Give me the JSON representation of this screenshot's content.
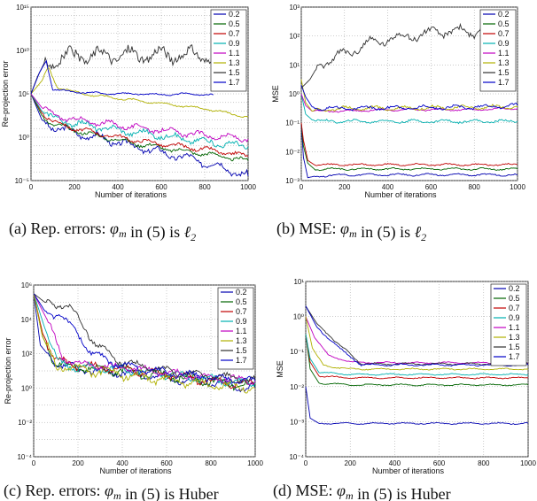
{
  "figure": {
    "captions": [
      {
        "prefix": "(a)",
        "text": "Rep. errors: ",
        "sym": "φ",
        "sub": "m",
        "rest": " in (5) is ",
        "tail": "ℓ",
        "tailsub": "2"
      },
      {
        "prefix": "(b)",
        "text": "MSE: ",
        "sym": "φ",
        "sub": "m",
        "rest": " in (5) is ",
        "tail": "ℓ",
        "tailsub": "2"
      },
      {
        "prefix": "(c)",
        "text": "Rep. errors: ",
        "sym": "φ",
        "sub": "m",
        "rest": " in (5) is Huber",
        "tail": "",
        "tailsub": ""
      },
      {
        "prefix": "(d)",
        "text": "MSE: ",
        "sym": "φ",
        "sub": "m",
        "rest": " in (5) is Huber",
        "tail": "",
        "tailsub": ""
      }
    ]
  },
  "colors": {
    "0.2": "#0000b0",
    "0.5": "#006400",
    "0.7": "#c00000",
    "0.9": "#00b0b0",
    "1.1": "#c000c0",
    "1.3": "#b0b000",
    "1.5": "#303030",
    "1.7": "#0000c8"
  },
  "chart_data": [
    {
      "id": "a",
      "type": "line",
      "title": "",
      "xlabel": "Number of iterations",
      "ylabel": "Re-projection error",
      "xlim": [
        0,
        1000
      ],
      "yscale": "log",
      "ylim_exp": [
        -5,
        15
      ],
      "xticks": [
        "0",
        "200",
        "400",
        "600",
        "800",
        "1000"
      ],
      "yticks": [
        "10⁻⁵",
        "10⁰",
        "10⁵",
        "10¹⁰",
        "10¹⁵"
      ],
      "legend": [
        "0.2",
        "0.5",
        "0.7",
        "0.9",
        "1.1",
        "1.3",
        "1.5",
        "1.7"
      ],
      "legend_position": "top-right",
      "series": [
        {
          "name": "0.2",
          "x": [
            0,
            50,
            100,
            200,
            300,
            400,
            500,
            600,
            700,
            800,
            900,
            1000
          ],
          "logy": [
            5,
            2,
            1.2,
            0.5,
            0,
            -0.6,
            -1.2,
            -1.8,
            -2.3,
            -2.9,
            -3.6,
            -4.5
          ],
          "osc": 0.7
        },
        {
          "name": "0.5",
          "x": [
            0,
            50,
            100,
            200,
            300,
            400,
            500,
            600,
            700,
            800,
            900,
            1000
          ],
          "logy": [
            5,
            2.5,
            1.5,
            0.8,
            0.2,
            -0.3,
            -0.8,
            -1.2,
            -1.6,
            -1.9,
            -2.3,
            -2.7
          ],
          "osc": 0.4
        },
        {
          "name": "0.7",
          "x": [
            0,
            50,
            100,
            200,
            300,
            400,
            500,
            600,
            700,
            800,
            900,
            1000
          ],
          "logy": [
            5,
            2.8,
            1.8,
            1,
            0.5,
            0,
            -0.4,
            -0.8,
            -1.1,
            -1.4,
            -1.8,
            -2.2
          ],
          "osc": 0.4
        },
        {
          "name": "0.9",
          "x": [
            0,
            50,
            100,
            200,
            300,
            400,
            500,
            600,
            700,
            800,
            900,
            1000
          ],
          "logy": [
            5,
            3,
            2.2,
            1.6,
            1.2,
            0.8,
            0.5,
            0.2,
            -0.2,
            -0.5,
            -0.8,
            -1.1
          ],
          "osc": 0.6
        },
        {
          "name": "1.1",
          "x": [
            0,
            50,
            100,
            200,
            300,
            400,
            500,
            600,
            700,
            800,
            900,
            1000
          ],
          "logy": [
            5,
            3.4,
            2.6,
            2,
            1.7,
            1.4,
            1.1,
            0.8,
            0.5,
            0.2,
            0,
            -0.2
          ],
          "osc": 0.5
        },
        {
          "name": "1.3",
          "x": [
            0,
            50,
            80,
            120,
            200,
            300,
            400,
            500,
            600,
            700,
            800,
            900,
            1000
          ],
          "logy": [
            5,
            6.5,
            8,
            5.8,
            5.2,
            4.8,
            4.5,
            4.2,
            3.9,
            3.6,
            3.3,
            2.8,
            2.3
          ],
          "osc": 0.2
        },
        {
          "name": "1.5",
          "x": [
            0,
            30,
            60,
            100,
            200,
            300,
            400,
            500,
            600,
            700,
            800,
            840
          ],
          "logy": [
            5,
            7,
            8.5,
            9,
            9.3,
            9.4,
            9.5,
            9.4,
            9.5,
            9.4,
            9.5,
            9.4
          ],
          "osc": 1.3
        },
        {
          "name": "1.7",
          "x": [
            0,
            40,
            70,
            100,
            200,
            300,
            400,
            500,
            600,
            700,
            800,
            840
          ],
          "logy": [
            5,
            7.5,
            8.8,
            5.5,
            5.2,
            5.1,
            5,
            5,
            4.9,
            5,
            4.9,
            4.9
          ],
          "osc": 0.15
        }
      ]
    },
    {
      "id": "b",
      "type": "line",
      "title": "",
      "xlabel": "Number of iterations",
      "ylabel": "MSE",
      "xlim": [
        0,
        1000
      ],
      "yscale": "log",
      "ylim_exp": [
        -3,
        3
      ],
      "xticks": [
        "0",
        "200",
        "400",
        "600",
        "800",
        "1000"
      ],
      "yticks": [
        "10⁻³",
        "10⁻²",
        "10⁻¹",
        "10⁰",
        "10¹",
        "10²",
        "10³"
      ],
      "legend": [
        "0.2",
        "0.5",
        "0.7",
        "0.9",
        "1.1",
        "1.3",
        "1.5",
        "1.7"
      ],
      "legend_position": "top-right",
      "series": [
        {
          "name": "0.2",
          "x": [
            0,
            10,
            30,
            60,
            200,
            400,
            600,
            800,
            1000
          ],
          "logy": [
            -1,
            -2.2,
            -2.9,
            -2.85,
            -2.8,
            -2.8,
            -2.8,
            -2.8,
            -2.8
          ],
          "osc": 0.05
        },
        {
          "name": "0.5",
          "x": [
            0,
            10,
            30,
            60,
            200,
            400,
            600,
            800,
            1000
          ],
          "logy": [
            -1,
            -1.8,
            -2.4,
            -2.6,
            -2.6,
            -2.6,
            -2.6,
            -2.6,
            -2.6
          ],
          "osc": 0.05
        },
        {
          "name": "0.7",
          "x": [
            0,
            10,
            30,
            60,
            200,
            400,
            600,
            800,
            1000
          ],
          "logy": [
            -1,
            -1.6,
            -2.3,
            -2.45,
            -2.45,
            -2.45,
            -2.45,
            -2.45,
            -2.45
          ],
          "osc": 0.05
        },
        {
          "name": "0.9",
          "x": [
            0,
            20,
            50,
            100,
            200,
            400,
            600,
            800,
            1000
          ],
          "logy": [
            0,
            -0.7,
            -0.9,
            -0.95,
            -0.95,
            -0.95,
            -0.95,
            -0.95,
            -0.95
          ],
          "osc": 0.08
        },
        {
          "name": "1.1",
          "x": [
            0,
            20,
            50,
            100,
            200,
            400,
            600,
            800,
            1000
          ],
          "logy": [
            0,
            -0.4,
            -0.6,
            -0.6,
            -0.6,
            -0.55,
            -0.55,
            -0.55,
            -0.5
          ],
          "osc": 0.05
        },
        {
          "name": "1.3",
          "x": [
            0,
            20,
            50,
            100,
            200,
            400,
            600,
            800,
            1000
          ],
          "logy": [
            0.5,
            -0.3,
            -0.6,
            -0.55,
            -0.5,
            -0.5,
            -0.48,
            -0.47,
            -0.45
          ],
          "osc": 0.1
        },
        {
          "name": "1.5",
          "x": [
            0,
            40,
            80,
            150,
            200,
            300,
            400,
            500,
            600,
            700,
            800,
            850
          ],
          "logy": [
            0.2,
            0.5,
            1,
            1.2,
            1.4,
            1.7,
            1.9,
            2.0,
            2.1,
            2.2,
            2.1,
            2.3
          ],
          "osc": 0.25
        },
        {
          "name": "1.7",
          "x": [
            0,
            20,
            50,
            100,
            200,
            400,
            600,
            800,
            1000
          ],
          "logy": [
            0.3,
            -0.1,
            -0.45,
            -0.5,
            -0.5,
            -0.48,
            -0.47,
            -0.46,
            -0.4
          ],
          "osc": 0.1
        }
      ]
    },
    {
      "id": "c",
      "type": "line",
      "title": "",
      "xlabel": "Number of iterations",
      "ylabel": "Re-projection error",
      "xlim": [
        0,
        1000
      ],
      "yscale": "log",
      "ylim_exp": [
        -4,
        6
      ],
      "xticks": [
        "0",
        "200",
        "400",
        "600",
        "800",
        "1000"
      ],
      "yticks": [
        "10⁻⁴",
        "10⁻²",
        "10⁰",
        "10²",
        "10⁴",
        "10⁶"
      ],
      "legend": [
        "0.2",
        "0.5",
        "0.7",
        "0.9",
        "1.1",
        "1.3",
        "1.5",
        "1.7"
      ],
      "legend_position": "top-right",
      "series": [
        {
          "name": "0.2",
          "x": [
            0,
            30,
            100,
            200,
            400,
            600,
            800,
            1000
          ],
          "logy": [
            5.5,
            2.5,
            1.4,
            1.1,
            0.9,
            0.6,
            0.3,
            0
          ],
          "osc": 0.35
        },
        {
          "name": "0.5",
          "x": [
            0,
            40,
            100,
            200,
            400,
            600,
            800,
            1000
          ],
          "logy": [
            5.5,
            3,
            1.4,
            1.2,
            1,
            0.7,
            0.4,
            0.1
          ],
          "osc": 0.4
        },
        {
          "name": "0.7",
          "x": [
            0,
            40,
            100,
            200,
            400,
            600,
            800,
            1000
          ],
          "logy": [
            5.5,
            3.2,
            1.6,
            1.3,
            1.1,
            0.8,
            0.4,
            0.2
          ],
          "osc": 0.35
        },
        {
          "name": "0.9",
          "x": [
            0,
            50,
            110,
            200,
            400,
            600,
            800,
            1000
          ],
          "logy": [
            5.5,
            3.5,
            1.5,
            1.2,
            1.1,
            0.8,
            0.5,
            0.3
          ],
          "osc": 0.35
        },
        {
          "name": "1.1",
          "x": [
            0,
            60,
            130,
            200,
            400,
            600,
            800,
            1000
          ],
          "logy": [
            5.5,
            4,
            1.8,
            1.4,
            1.2,
            0.9,
            0.6,
            0.4
          ],
          "osc": 0.3
        },
        {
          "name": "1.3",
          "x": [
            0,
            40,
            100,
            200,
            400,
            600,
            800,
            1000
          ],
          "logy": [
            5.5,
            3,
            1.3,
            1.1,
            0.8,
            0.5,
            0.2,
            0
          ],
          "osc": 0.4
        },
        {
          "name": "1.5",
          "x": [
            0,
            50,
            150,
            200,
            280,
            400,
            600,
            800,
            1000
          ],
          "logy": [
            5.5,
            5,
            4.8,
            4.2,
            2.5,
            1.5,
            1.0,
            0.7,
            0.5
          ],
          "osc": 0.3
        },
        {
          "name": "1.7",
          "x": [
            0,
            50,
            120,
            200,
            260,
            400,
            600,
            800,
            1000
          ],
          "logy": [
            5.5,
            4.5,
            4.2,
            3.2,
            2,
            1.3,
            0.9,
            0.6,
            0.4
          ],
          "osc": 0.3
        }
      ]
    },
    {
      "id": "d",
      "type": "line",
      "title": "",
      "xlabel": "Number of iterations",
      "ylabel": "MSE",
      "xlim": [
        0,
        1000
      ],
      "yscale": "log",
      "ylim_exp": [
        -4,
        1
      ],
      "xticks": [
        "0",
        "200",
        "400",
        "600",
        "800",
        "1000"
      ],
      "yticks": [
        "10⁻⁴",
        "10⁻³",
        "10⁻²",
        "10⁻¹",
        "10⁰",
        "10¹"
      ],
      "legend": [
        "0.2",
        "0.5",
        "0.7",
        "0.9",
        "1.1",
        "1.3",
        "1.5",
        "1.7"
      ],
      "legend_position": "top-right",
      "series": [
        {
          "name": "0.2",
          "x": [
            0,
            20,
            60,
            200,
            400,
            600,
            800,
            1000
          ],
          "logy": [
            -2,
            -2.9,
            -3.05,
            -3.05,
            -3.05,
            -3.05,
            -3.05,
            -3.05
          ],
          "osc": 0.03
        },
        {
          "name": "0.5",
          "x": [
            0,
            20,
            60,
            200,
            400,
            600,
            800,
            1000
          ],
          "logy": [
            -0.5,
            -1.5,
            -1.9,
            -1.95,
            -1.95,
            -1.95,
            -1.95,
            -1.95
          ],
          "osc": 0.03
        },
        {
          "name": "0.7",
          "x": [
            0,
            20,
            60,
            200,
            400,
            600,
            800,
            1000
          ],
          "logy": [
            -0.5,
            -1.3,
            -1.7,
            -1.75,
            -1.75,
            -1.75,
            -1.75,
            -1.75
          ],
          "osc": 0.03
        },
        {
          "name": "0.9",
          "x": [
            0,
            20,
            60,
            200,
            400,
            600,
            800,
            1000
          ],
          "logy": [
            -0.5,
            -1.2,
            -1.6,
            -1.65,
            -1.65,
            -1.65,
            -1.65,
            -1.65
          ],
          "osc": 0.03
        },
        {
          "name": "1.1",
          "x": [
            0,
            40,
            100,
            200,
            400,
            600,
            800,
            1000
          ],
          "logy": [
            0,
            -0.6,
            -1.1,
            -1.3,
            -1.32,
            -1.32,
            -1.32,
            -1.32
          ],
          "osc": 0.03
        },
        {
          "name": "1.3",
          "x": [
            0,
            30,
            80,
            200,
            400,
            600,
            800,
            1000
          ],
          "logy": [
            0,
            -0.9,
            -1.4,
            -1.5,
            -1.5,
            -1.5,
            -1.5,
            -1.5
          ],
          "osc": 0.03
        },
        {
          "name": "1.5",
          "x": [
            0,
            50,
            150,
            250,
            400,
            600,
            800,
            1000
          ],
          "logy": [
            0.3,
            -0.2,
            -0.8,
            -1.35,
            -1.35,
            -1.35,
            -1.35,
            -1.35
          ],
          "osc": 0.04
        },
        {
          "name": "1.7",
          "x": [
            0,
            50,
            150,
            250,
            400,
            600,
            800,
            1000
          ],
          "logy": [
            0.3,
            -0.3,
            -0.9,
            -1.38,
            -1.38,
            -1.38,
            -1.38,
            -1.38
          ],
          "osc": 0.04
        }
      ]
    }
  ]
}
